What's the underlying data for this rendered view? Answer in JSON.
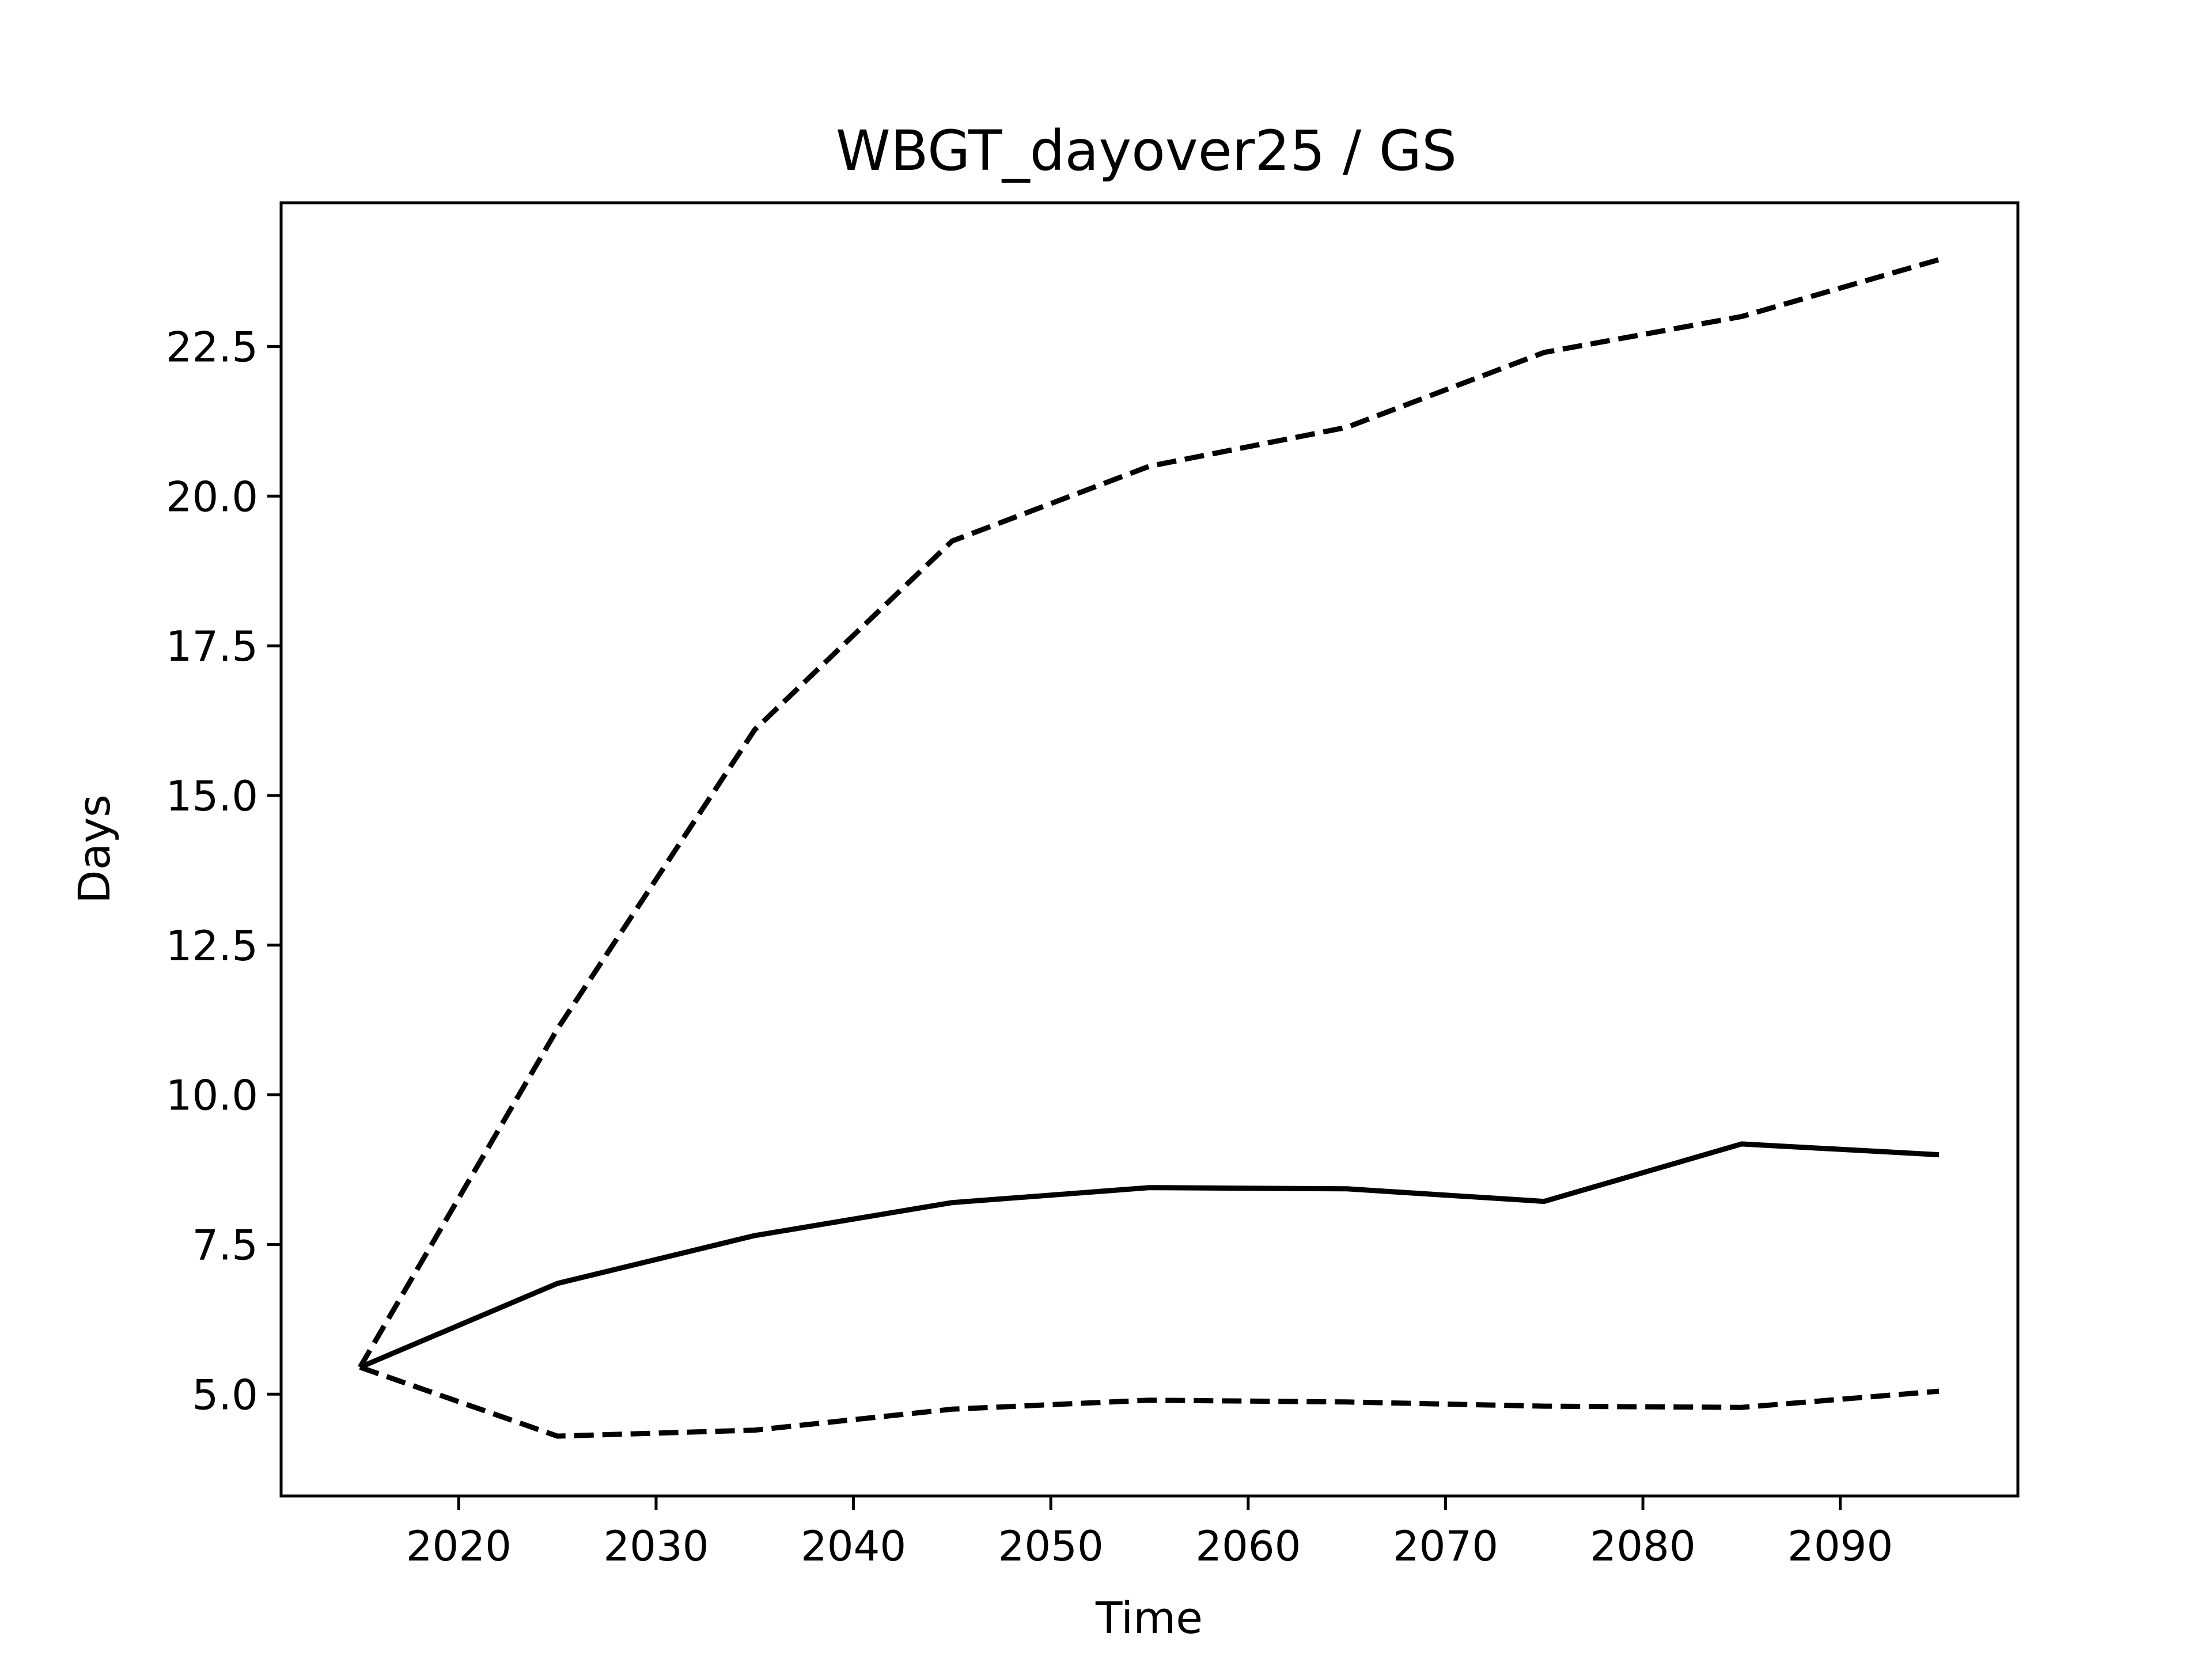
{
  "chart_data": {
    "type": "line",
    "title": "WBGT_dayover25 / GS",
    "xlabel": "Time",
    "ylabel": "Days",
    "xlim": [
      2011,
      2099
    ],
    "ylim": [
      3.3,
      24.9
    ],
    "xticks": [
      2020,
      2030,
      2040,
      2050,
      2060,
      2070,
      2080,
      2090
    ],
    "yticks": [
      5.0,
      7.5,
      10.0,
      12.5,
      15.0,
      17.5,
      20.0,
      22.5
    ],
    "x": [
      2015,
      2025,
      2035,
      2045,
      2055,
      2065,
      2075,
      2085,
      2095
    ],
    "grid": false,
    "legend": false,
    "series": [
      {
        "style": "dashed",
        "color": "#000000",
        "values": [
          5.45,
          11.1,
          16.1,
          19.25,
          20.5,
          21.15,
          22.4,
          23.0,
          23.95
        ]
      },
      {
        "style": "solid",
        "color": "#000000",
        "values": [
          5.45,
          6.85,
          7.65,
          8.2,
          8.45,
          8.43,
          8.22,
          9.18,
          9.0
        ]
      },
      {
        "style": "dashed",
        "color": "#000000",
        "values": [
          5.45,
          4.3,
          4.4,
          4.75,
          4.9,
          4.87,
          4.8,
          4.78,
          5.05
        ]
      }
    ]
  }
}
